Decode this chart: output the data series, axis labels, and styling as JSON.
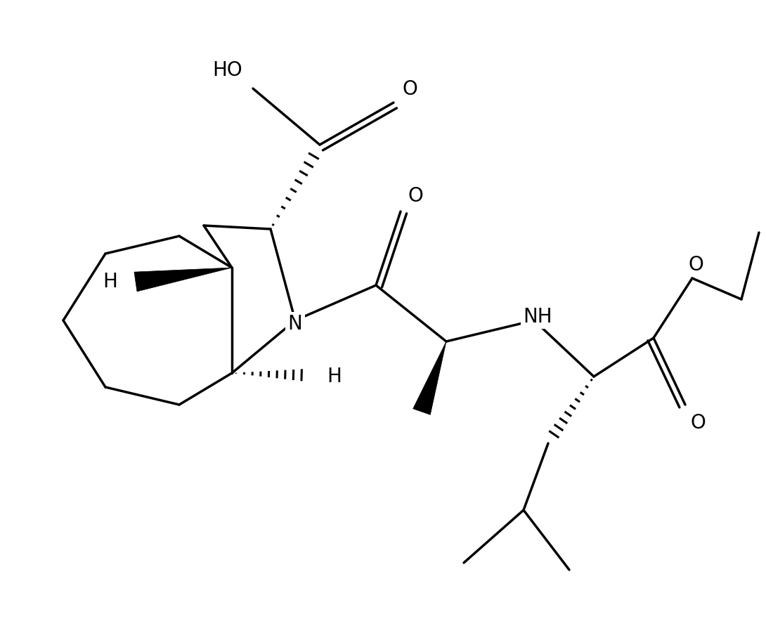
{
  "background_color": "#ffffff",
  "line_color": "#000000",
  "line_width": 2.5,
  "figsize": [
    10.9,
    8.91
  ],
  "dpi": 100,
  "xlim": [
    0,
    10.9
  ],
  "ylim": [
    0,
    8.91
  ]
}
